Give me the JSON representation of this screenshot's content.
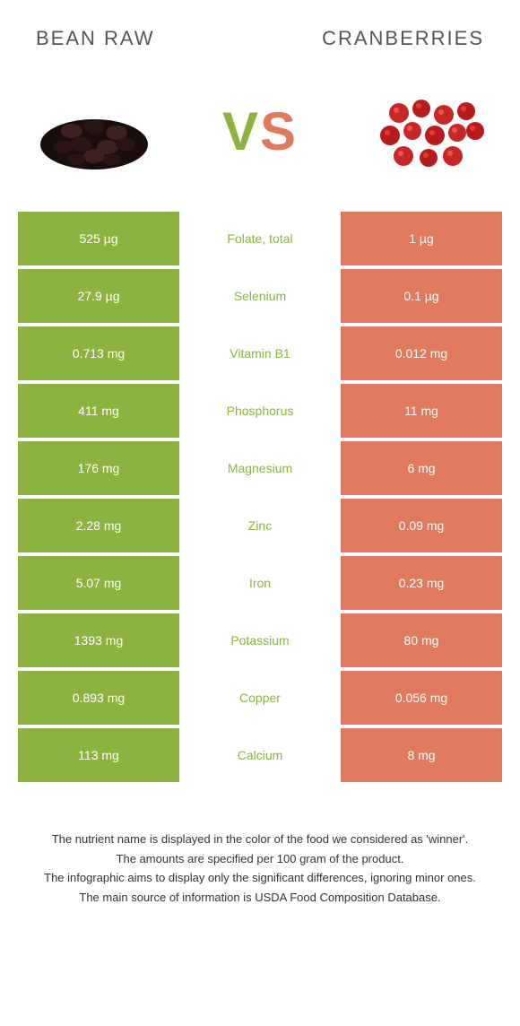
{
  "header": {
    "left_title": "BEAN RAW",
    "right_title": "CRANBERRIES"
  },
  "vs": {
    "v": "V",
    "s": "S"
  },
  "colors": {
    "left_bg": "#8cb23f",
    "right_bg": "#e07a5f",
    "winner_left_text": "#8cb23f",
    "winner_right_text": "#e07a5f",
    "background": "#ffffff"
  },
  "rows": [
    {
      "left": "525 µg",
      "label": "Folate, total",
      "right": "1 µg",
      "winner": "left"
    },
    {
      "left": "27.9 µg",
      "label": "Selenium",
      "right": "0.1 µg",
      "winner": "left"
    },
    {
      "left": "0.713 mg",
      "label": "Vitamin B1",
      "right": "0.012 mg",
      "winner": "left"
    },
    {
      "left": "411 mg",
      "label": "Phosphorus",
      "right": "11 mg",
      "winner": "left"
    },
    {
      "left": "176 mg",
      "label": "Magnesium",
      "right": "6 mg",
      "winner": "left"
    },
    {
      "left": "2.28 mg",
      "label": "Zinc",
      "right": "0.09 mg",
      "winner": "left"
    },
    {
      "left": "5.07 mg",
      "label": "Iron",
      "right": "0.23 mg",
      "winner": "left"
    },
    {
      "left": "1393 mg",
      "label": "Potassium",
      "right": "80 mg",
      "winner": "left"
    },
    {
      "left": "0.893 mg",
      "label": "Copper",
      "right": "0.056 mg",
      "winner": "left"
    },
    {
      "left": "113 mg",
      "label": "Calcium",
      "right": "8 mg",
      "winner": "left"
    }
  ],
  "footnotes": [
    "The nutrient name is displayed in the color of the food we considered as 'winner'.",
    "The amounts are specified per 100 gram of the product.",
    "The infographic aims to display only the significant differences, ignoring minor ones.",
    "The main source of information is USDA Food Composition Database."
  ]
}
